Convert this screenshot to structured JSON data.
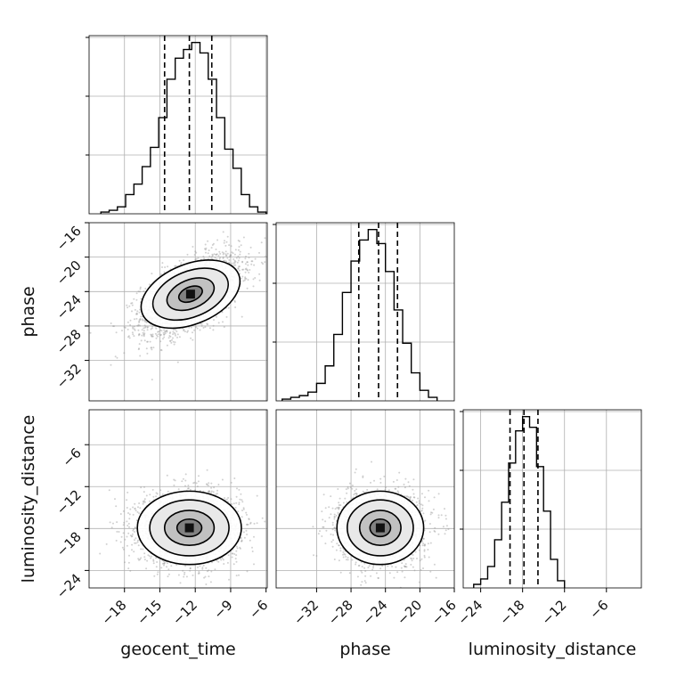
{
  "chart_data": {
    "type": "corner",
    "parameters": [
      "geocent_time",
      "phase",
      "luminosity_distance"
    ],
    "ranges": {
      "geocent_time": [
        -21,
        -5.9
      ],
      "phase": [
        -36.7,
        -16
      ],
      "luminosity_distance": [
        -26.5,
        -1
      ]
    },
    "ticks": {
      "geocent_time": [
        -18,
        -15,
        -12,
        -9,
        -6
      ],
      "phase": [
        -32,
        -28,
        -24,
        -20,
        -16
      ],
      "luminosity_distance": [
        -24,
        -18,
        -12,
        -6
      ]
    },
    "tick_labels": {
      "geocent_time": [
        "−18",
        "−15",
        "−12",
        "−9",
        "−6"
      ],
      "phase": [
        "−32",
        "−28",
        "−24",
        "−20",
        "−16"
      ],
      "luminosity_distance": [
        "−24",
        "−18",
        "−12",
        "−6"
      ]
    },
    "y_tick_labels": {
      "phase": [
        "−32",
        "−28",
        "−24",
        "−20",
        "−16"
      ],
      "luminosity_distance": [
        "−24",
        "−18",
        "−12",
        "−6"
      ]
    },
    "quantiles": {
      "geocent_time": [
        -14.6,
        -12.5,
        -10.6
      ],
      "phase": [
        -27.1,
        -24.8,
        -22.6
      ],
      "luminosity_distance": [
        -19.8,
        -17.8,
        -15.8
      ]
    },
    "histograms": {
      "geocent_time": {
        "edges": [
          -20.0,
          -19.3,
          -18.6,
          -17.9,
          -17.2,
          -16.5,
          -15.8,
          -15.1,
          -14.4,
          -13.7,
          -13.0,
          -12.3,
          -11.6,
          -10.9,
          -10.2,
          -9.5,
          -8.8,
          -8.1,
          -7.4,
          -6.7,
          -6.0
        ],
        "counts": [
          1,
          2,
          4,
          11,
          17,
          27,
          38,
          55,
          77,
          89,
          94,
          98,
          92,
          77,
          55,
          37,
          26,
          11,
          4,
          1
        ]
      },
      "phase": {
        "edges": [
          -36.0,
          -35.0,
          -34.0,
          -33.0,
          -32.0,
          -31.0,
          -30.0,
          -29.0,
          -28.0,
          -27.0,
          -26.0,
          -25.0,
          -24.0,
          -23.0,
          -22.0,
          -21.0,
          -20.0,
          -19.0,
          -18.0
        ],
        "counts": [
          1,
          2,
          3,
          5,
          10,
          20,
          38,
          62,
          80,
          92,
          98,
          90,
          74,
          52,
          33,
          16,
          6,
          2
        ]
      },
      "luminosity_distance": {
        "edges": [
          -25.0,
          -24.0,
          -23.0,
          -22.0,
          -21.0,
          -20.0,
          -19.0,
          -18.0,
          -17.0,
          -16.0,
          -15.0,
          -14.0,
          -13.0,
          -12.0
        ],
        "counts": [
          2,
          5,
          12,
          27,
          48,
          70,
          88,
          96,
          90,
          68,
          43,
          16,
          4
        ]
      }
    },
    "panels_2d": [
      {
        "x": "geocent_time",
        "y": "phase",
        "center": [
          -12.4,
          -24.3
        ],
        "sigma": [
          2.1,
          2.3
        ],
        "correlation": 0.58,
        "contour_levels": [
          0.5,
          1.0,
          1.6,
          2.1
        ]
      },
      {
        "x": "geocent_time",
        "y": "luminosity_distance",
        "center": [
          -12.5,
          -17.9
        ],
        "sigma": [
          2.1,
          2.5
        ],
        "correlation": 0.0,
        "contour_levels": [
          0.5,
          1.0,
          1.6,
          2.1
        ]
      },
      {
        "x": "phase",
        "y": "luminosity_distance",
        "center": [
          -24.6,
          -17.9
        ],
        "sigma": [
          2.4,
          2.5
        ],
        "correlation": 0.0,
        "contour_levels": [
          0.5,
          1.0,
          1.6,
          2.1
        ]
      }
    ],
    "grid": true,
    "colors": {
      "line": "#000000",
      "scatter": "#9a9a9a",
      "grid": "#b0b0b0",
      "frame": "#000000"
    }
  }
}
